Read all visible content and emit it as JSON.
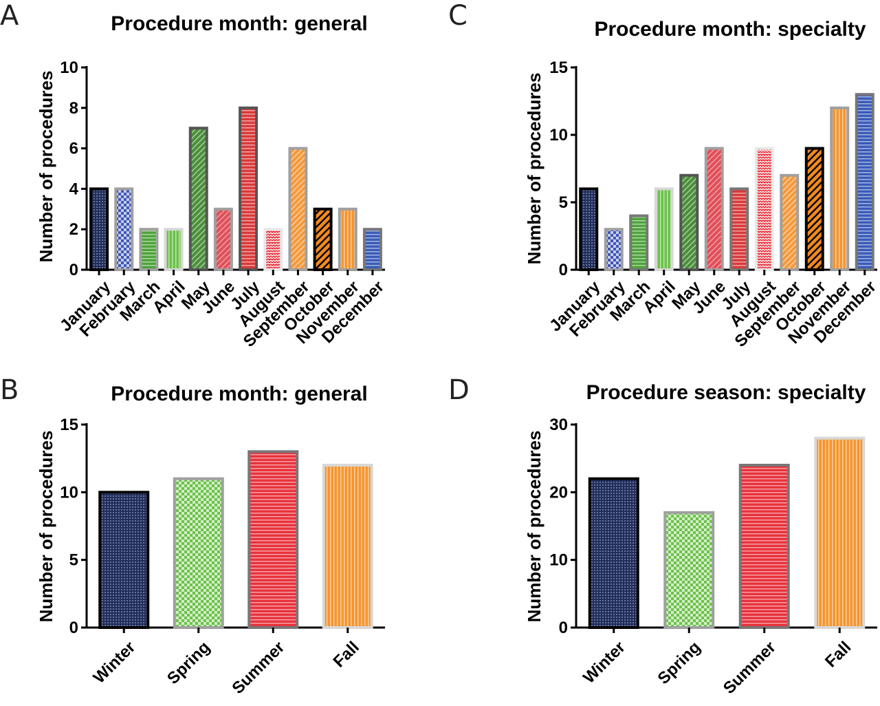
{
  "chart_data": [
    {
      "panel": "A",
      "type": "bar",
      "title": "Procedure month: general",
      "xlabel": "",
      "ylabel": "Number of procedures",
      "categories": [
        "January",
        "February",
        "March",
        "April",
        "May",
        "June",
        "July",
        "August",
        "September",
        "October",
        "November",
        "December"
      ],
      "values": [
        4,
        4,
        2,
        2,
        7,
        3,
        8,
        2,
        6,
        3,
        3,
        2
      ],
      "ylim": [
        0,
        10
      ],
      "yticks": [
        0,
        2,
        4,
        6,
        8,
        10
      ],
      "grid": false,
      "bar_styles": [
        {
          "fill": "#1f2d5c",
          "pattern": "dots",
          "border": "#000000"
        },
        {
          "fill": "#3f57b8",
          "pattern": "checker",
          "border": "#a0a0a0"
        },
        {
          "fill": "#4ea43a",
          "pattern": "hlines",
          "border": "#a0a0a0"
        },
        {
          "fill": "#6cc24a",
          "pattern": "vlines",
          "border": "#d8d8d8"
        },
        {
          "fill": "#4a8f3a",
          "pattern": "diag",
          "border": "#555555"
        },
        {
          "fill": "#e0505a",
          "pattern": "diag2",
          "border": "#a0a0a0"
        },
        {
          "fill": "#d93a3a",
          "pattern": "hlines",
          "border": "#555555"
        },
        {
          "fill": "#e8323c",
          "pattern": "zigzag",
          "border": "#e8e8e8"
        },
        {
          "fill": "#f39a3c",
          "pattern": "diag",
          "border": "#a0a0a0"
        },
        {
          "fill": "#f28a1e",
          "pattern": "diagbold",
          "border": "#000000"
        },
        {
          "fill": "#f59530",
          "pattern": "vlines",
          "border": "#a0a0a0"
        },
        {
          "fill": "#3a5cb8",
          "pattern": "hlines",
          "border": "#777777"
        }
      ]
    },
    {
      "panel": "B",
      "type": "bar",
      "title": "Procedure month: general",
      "xlabel": "",
      "ylabel": "Number of procedures",
      "categories": [
        "Winter",
        "Spring",
        "Summer",
        "Fall"
      ],
      "values": [
        10,
        11,
        13,
        12
      ],
      "ylim": [
        0,
        15
      ],
      "yticks": [
        0,
        5,
        10,
        15
      ],
      "grid": false,
      "bar_styles": [
        {
          "fill": "#1f2d5c",
          "pattern": "dots",
          "border": "#000000"
        },
        {
          "fill": "#6cc24a",
          "pattern": "checker",
          "border": "#a0a0a0"
        },
        {
          "fill": "#e8323c",
          "pattern": "hlines",
          "border": "#777777"
        },
        {
          "fill": "#f59530",
          "pattern": "vlines",
          "border": "#d8d8d8"
        }
      ]
    },
    {
      "panel": "C",
      "type": "bar",
      "title": "Procedure month: specialty",
      "xlabel": "",
      "ylabel": "Number of procedures",
      "categories": [
        "January",
        "February",
        "March",
        "April",
        "May",
        "June",
        "July",
        "August",
        "September",
        "October",
        "November",
        "December"
      ],
      "values": [
        6,
        3,
        4,
        6,
        7,
        9,
        6,
        9,
        7,
        9,
        12,
        13
      ],
      "ylim": [
        0,
        15
      ],
      "yticks": [
        0,
        5,
        10,
        15
      ],
      "grid": false,
      "bar_styles": [
        {
          "fill": "#1f2d5c",
          "pattern": "dots",
          "border": "#000000"
        },
        {
          "fill": "#3f57b8",
          "pattern": "checker",
          "border": "#a0a0a0"
        },
        {
          "fill": "#4ea43a",
          "pattern": "hlines",
          "border": "#777777"
        },
        {
          "fill": "#6cc24a",
          "pattern": "vlines",
          "border": "#d8d8d8"
        },
        {
          "fill": "#4a8f3a",
          "pattern": "diag",
          "border": "#555555"
        },
        {
          "fill": "#e0505a",
          "pattern": "diag2",
          "border": "#a0a0a0"
        },
        {
          "fill": "#d93a3a",
          "pattern": "hlines",
          "border": "#777777"
        },
        {
          "fill": "#e8323c",
          "pattern": "zigzag",
          "border": "#e8e8e8"
        },
        {
          "fill": "#f39a3c",
          "pattern": "diag",
          "border": "#a0a0a0"
        },
        {
          "fill": "#f28a1e",
          "pattern": "diagbold",
          "border": "#000000"
        },
        {
          "fill": "#f59530",
          "pattern": "vlines",
          "border": "#a0a0a0"
        },
        {
          "fill": "#3a5cb8",
          "pattern": "hlines",
          "border": "#777777"
        }
      ]
    },
    {
      "panel": "D",
      "type": "bar",
      "title": "Procedure season: specialty",
      "xlabel": "",
      "ylabel": "Number of procedures",
      "categories": [
        "Winter",
        "Spring",
        "Summer",
        "Fall"
      ],
      "values": [
        22,
        17,
        24,
        28
      ],
      "ylim": [
        0,
        30
      ],
      "yticks": [
        0,
        10,
        20,
        30
      ],
      "grid": false,
      "bar_styles": [
        {
          "fill": "#1f2d5c",
          "pattern": "dots",
          "border": "#000000"
        },
        {
          "fill": "#6cc24a",
          "pattern": "checker",
          "border": "#a0a0a0"
        },
        {
          "fill": "#e8323c",
          "pattern": "hlines",
          "border": "#777777"
        },
        {
          "fill": "#f59530",
          "pattern": "vlines",
          "border": "#d8d8d8"
        }
      ]
    }
  ]
}
